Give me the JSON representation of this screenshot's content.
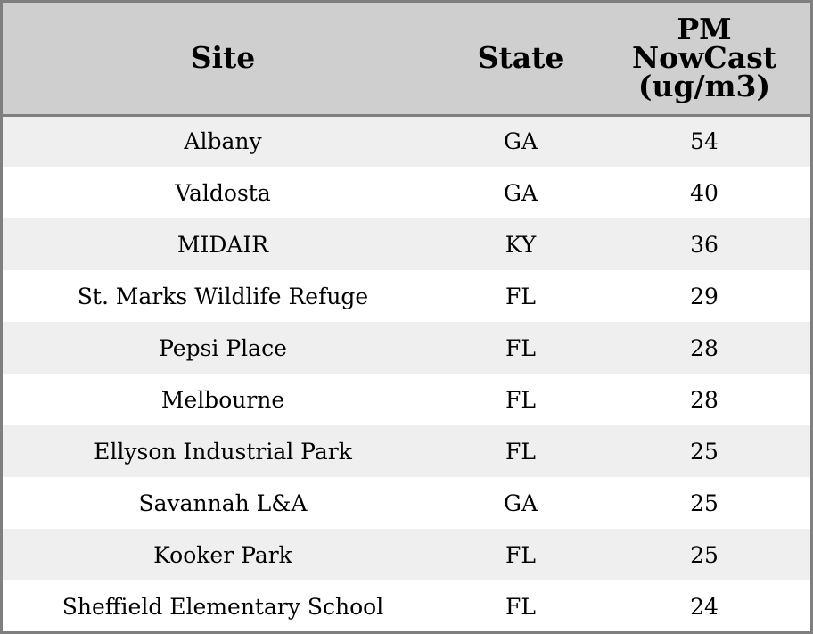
{
  "chart_data": {
    "type": "table",
    "columns": [
      "Site",
      "State",
      "PM NowCast (ug/m3)"
    ],
    "header_lines": {
      "site": "Site",
      "state": "State",
      "pm": [
        "PM",
        "NowCast",
        "(ug/m3)"
      ]
    },
    "rows": [
      {
        "site": "Albany",
        "state": "GA",
        "pm": "54"
      },
      {
        "site": "Valdosta",
        "state": "GA",
        "pm": "40"
      },
      {
        "site": "MIDAIR",
        "state": "KY",
        "pm": "36"
      },
      {
        "site": "St. Marks Wildlife Refuge",
        "state": "FL",
        "pm": "29"
      },
      {
        "site": "Pepsi Place",
        "state": "FL",
        "pm": "28"
      },
      {
        "site": "Melbourne",
        "state": "FL",
        "pm": "28"
      },
      {
        "site": "Ellyson Industrial Park",
        "state": "FL",
        "pm": "25"
      },
      {
        "site": "Savannah L&A",
        "state": "GA",
        "pm": "25"
      },
      {
        "site": "Kooker Park",
        "state": "FL",
        "pm": "25"
      },
      {
        "site": "Sheffield Elementary School",
        "state": "FL",
        "pm": "24"
      }
    ]
  },
  "colors": {
    "header_bg": "#cfcfcf",
    "row_alt_bg": "#efefef",
    "row_bg": "#ffffff",
    "border": "#7f7f7f"
  }
}
